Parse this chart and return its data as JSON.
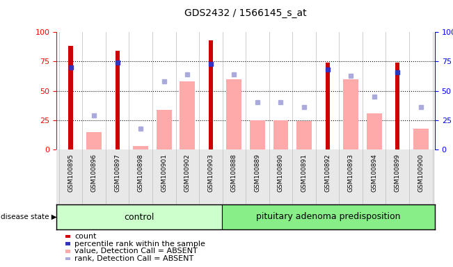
{
  "title": "GDS2432 / 1566145_s_at",
  "samples": [
    "GSM100895",
    "GSM100896",
    "GSM100897",
    "GSM100898",
    "GSM100901",
    "GSM100902",
    "GSM100903",
    "GSM100888",
    "GSM100889",
    "GSM100890",
    "GSM100891",
    "GSM100892",
    "GSM100893",
    "GSM100894",
    "GSM100899",
    "GSM100900"
  ],
  "count": [
    88,
    0,
    84,
    0,
    0,
    0,
    93,
    0,
    0,
    0,
    0,
    74,
    0,
    0,
    74,
    0
  ],
  "percentile_rank": [
    70,
    0,
    74,
    0,
    0,
    0,
    73,
    0,
    0,
    0,
    0,
    68,
    0,
    0,
    66,
    0
  ],
  "value_absent": [
    0,
    15,
    0,
    3,
    34,
    58,
    0,
    60,
    25,
    25,
    24,
    0,
    60,
    31,
    0,
    18
  ],
  "rank_absent": [
    0,
    29,
    0,
    18,
    58,
    64,
    0,
    64,
    40,
    40,
    36,
    0,
    63,
    45,
    0,
    36
  ],
  "n_control": 7,
  "n_total": 16,
  "control_label": "control",
  "disease_label": "pituitary adenoma predisposition",
  "disease_state_label": "disease state",
  "bar_color_count": "#cc0000",
  "bar_color_value_absent": "#ffaaaa",
  "dot_color_rank": "#3333bb",
  "dot_color_rank_absent": "#aaaadd",
  "ylim": [
    0,
    100
  ],
  "yticks": [
    0,
    25,
    50,
    75,
    100
  ],
  "background_plot": "#e8e8e8",
  "background_control": "#ccffcc",
  "background_disease": "#88ee88",
  "legend_items": [
    "count",
    "percentile rank within the sample",
    "value, Detection Call = ABSENT",
    "rank, Detection Call = ABSENT"
  ],
  "legend_colors": [
    "#cc0000",
    "#3333bb",
    "#ffaaaa",
    "#aaaadd"
  ]
}
